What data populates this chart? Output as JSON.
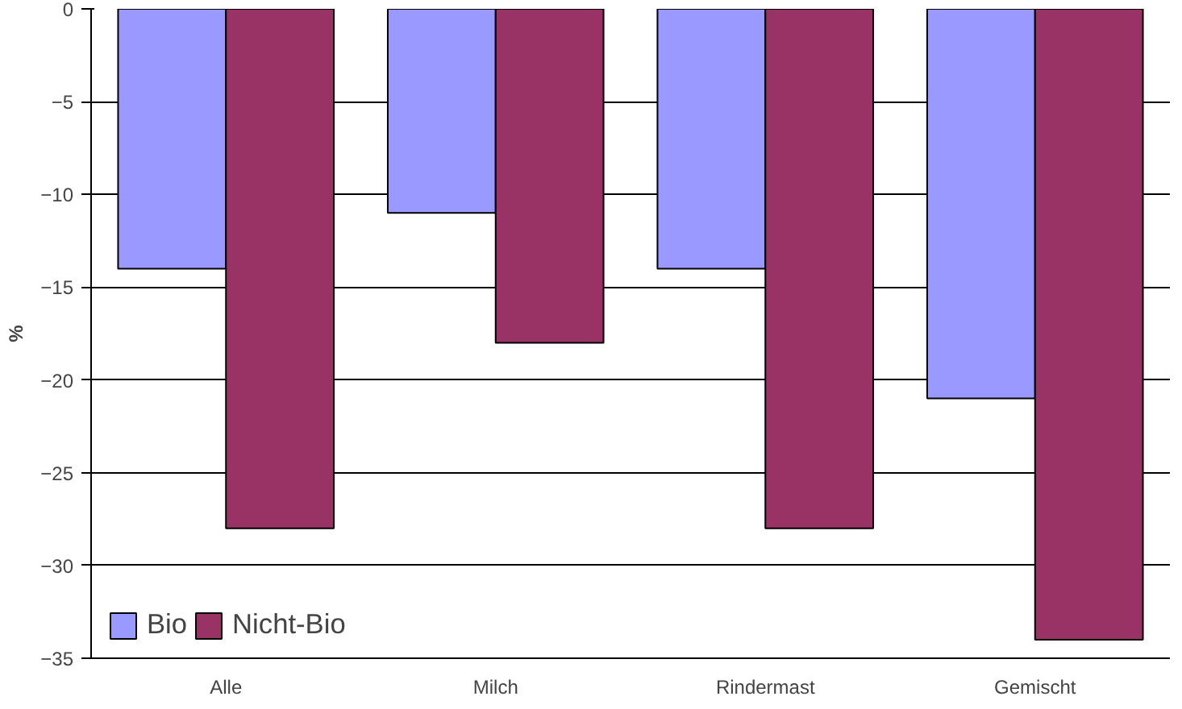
{
  "chart_data": {
    "type": "bar",
    "ylabel": "%",
    "categories": [
      "Alle",
      "Milch",
      "Rindermast",
      "Gemischt"
    ],
    "series": [
      {
        "name": "Bio",
        "color": "#9999ff",
        "values": [
          -14,
          -11,
          -14,
          -21
        ]
      },
      {
        "name": "Nicht-Bio",
        "color": "#993366",
        "values": [
          -28,
          -18,
          -28,
          -34
        ]
      }
    ],
    "ylim": [
      -35,
      0
    ],
    "yticks": [
      -35,
      -30,
      -25,
      -20,
      -15,
      -10,
      -5,
      0
    ],
    "grid": "y",
    "legend": "bottom left"
  }
}
